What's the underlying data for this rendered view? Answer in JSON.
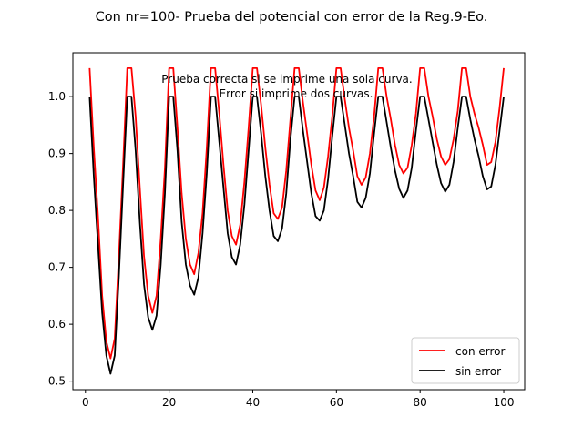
{
  "chart_data": {
    "type": "line",
    "title": "Con nr=100- Prueba del potencial con error de la Reg.9-Eo.",
    "xlabel": "",
    "ylabel": "",
    "xlim": [
      -3,
      105
    ],
    "ylim": [
      0.485,
      1.077
    ],
    "xticks": [
      0,
      20,
      40,
      60,
      80,
      100
    ],
    "yticks": [
      0.5,
      0.6,
      0.7,
      0.8,
      0.9,
      1.0
    ],
    "xtick_labels": [
      "0",
      "20",
      "40",
      "60",
      "80",
      "100"
    ],
    "ytick_labels": [
      "0.5",
      "0.6",
      "0.7",
      "0.8",
      "0.9",
      "1.0"
    ],
    "annotations": [
      "Prueba correcta si se imprime una sola curva.",
      "Error si imprime dos curvas."
    ],
    "legend": {
      "position": "bottom-right"
    },
    "grid": false,
    "x": [
      1,
      2,
      3,
      4,
      5,
      6,
      7,
      8,
      9,
      10,
      11,
      12,
      13,
      14,
      15,
      16,
      17,
      18,
      19,
      20,
      21,
      22,
      23,
      24,
      25,
      26,
      27,
      28,
      29,
      30,
      31,
      32,
      33,
      34,
      35,
      36,
      37,
      38,
      39,
      40,
      41,
      42,
      43,
      44,
      45,
      46,
      47,
      48,
      49,
      50,
      51,
      52,
      53,
      54,
      55,
      56,
      57,
      58,
      59,
      60,
      61,
      62,
      63,
      64,
      65,
      66,
      67,
      68,
      69,
      70,
      71,
      72,
      73,
      74,
      75,
      76,
      77,
      78,
      79,
      80,
      81,
      82,
      83,
      84,
      85,
      86,
      87,
      88,
      89,
      90,
      91,
      92,
      93,
      94,
      95,
      96,
      97,
      98,
      99,
      100
    ],
    "series": [
      {
        "name": "con error",
        "color": "#ff0000",
        "values": [
          1.05,
          0.91,
          0.79,
          0.65,
          0.57,
          0.54,
          0.575,
          0.72,
          0.88,
          1.05,
          1.05,
          0.965,
          0.84,
          0.72,
          0.65,
          0.62,
          0.65,
          0.75,
          0.875,
          1.05,
          1.05,
          0.945,
          0.83,
          0.75,
          0.705,
          0.688,
          0.725,
          0.795,
          0.91,
          1.05,
          1.05,
          0.97,
          0.88,
          0.8,
          0.755,
          0.74,
          0.775,
          0.85,
          0.945,
          1.05,
          1.05,
          0.985,
          0.91,
          0.845,
          0.795,
          0.785,
          0.805,
          0.87,
          0.96,
          1.05,
          1.05,
          0.99,
          0.935,
          0.88,
          0.835,
          0.818,
          0.84,
          0.895,
          0.965,
          1.05,
          1.05,
          0.995,
          0.945,
          0.905,
          0.86,
          0.845,
          0.858,
          0.9,
          0.965,
          1.05,
          1.05,
          1.0,
          0.96,
          0.915,
          0.88,
          0.865,
          0.875,
          0.915,
          0.97,
          1.05,
          1.05,
          1.0,
          0.965,
          0.925,
          0.895,
          0.88,
          0.89,
          0.925,
          0.975,
          1.05,
          1.05,
          1.0,
          0.97,
          0.945,
          0.915,
          0.88,
          0.885,
          0.92,
          0.98,
          1.05
        ]
      },
      {
        "name": "sin error",
        "color": "#000000",
        "values": [
          1.0,
          0.86,
          0.74,
          0.62,
          0.545,
          0.513,
          0.545,
          0.685,
          0.845,
          1.0,
          1.0,
          0.905,
          0.78,
          0.67,
          0.612,
          0.59,
          0.615,
          0.705,
          0.83,
          1.0,
          1.0,
          0.905,
          0.78,
          0.705,
          0.668,
          0.652,
          0.682,
          0.76,
          0.865,
          1.0,
          1.0,
          0.92,
          0.84,
          0.76,
          0.718,
          0.705,
          0.74,
          0.81,
          0.905,
          1.0,
          1.0,
          0.935,
          0.86,
          0.8,
          0.755,
          0.746,
          0.768,
          0.83,
          0.925,
          1.0,
          1.0,
          0.94,
          0.885,
          0.83,
          0.79,
          0.782,
          0.8,
          0.855,
          0.93,
          1.0,
          1.0,
          0.95,
          0.9,
          0.86,
          0.815,
          0.805,
          0.822,
          0.865,
          0.935,
          1.0,
          1.0,
          0.955,
          0.91,
          0.87,
          0.838,
          0.822,
          0.835,
          0.875,
          0.94,
          1.0,
          1.0,
          0.96,
          0.92,
          0.88,
          0.848,
          0.833,
          0.845,
          0.885,
          0.945,
          1.0,
          1.0,
          0.96,
          0.925,
          0.895,
          0.86,
          0.837,
          0.842,
          0.88,
          0.94,
          1.0
        ]
      }
    ]
  }
}
